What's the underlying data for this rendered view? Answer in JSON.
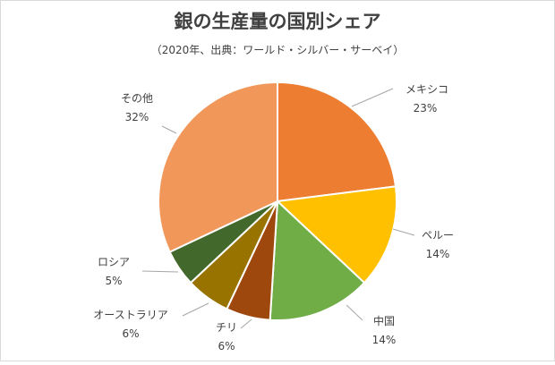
{
  "chart_data": {
    "type": "pie",
    "title": "銀の生産量の国別シェア",
    "subtitle": "（2020年、出典：ワールド・シルバー・サーベイ）",
    "unit": "%",
    "slices": [
      {
        "label": "メキシコ",
        "value": 23,
        "color": "#ED7D31"
      },
      {
        "label": "ペルー",
        "value": 14,
        "color": "#FFC000"
      },
      {
        "label": "中国",
        "value": 14,
        "color": "#70AD47"
      },
      {
        "label": "チリ",
        "value": 6,
        "color": "#9E480E"
      },
      {
        "label": "オーストラリア",
        "value": 6,
        "color": "#997300"
      },
      {
        "label": "ロシア",
        "value": 5,
        "color": "#43682B"
      },
      {
        "label": "その他",
        "value": 32,
        "color": "#F1975A"
      }
    ]
  }
}
